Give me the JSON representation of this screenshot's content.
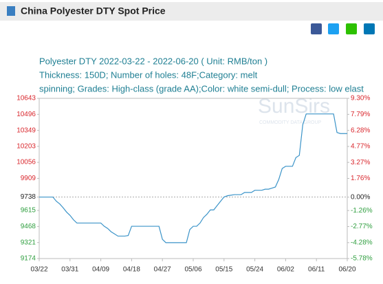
{
  "header": {
    "title": "China Polyester DTY Spot Price"
  },
  "watermark": {
    "brand": "SunSirs",
    "tagline": "COMMODITY DATA GROUP"
  },
  "chart_data": {
    "type": "line",
    "subtitle_lines": [
      "Polyester DTY 2022-03-22 - 2022-06-20    ( Unit: RMB/ton )",
      "Thickness: 150D; Number of holes: 48F;Category: melt",
      "spinning; Grades: High-class (grade AA);Color: white semi-dull; Process: low elast"
    ],
    "categories": [
      "03/22",
      null,
      null,
      null,
      null,
      null,
      null,
      null,
      null,
      "03/31",
      null,
      null,
      null,
      null,
      null,
      null,
      null,
      null,
      "04/09",
      null,
      null,
      null,
      null,
      null,
      null,
      null,
      null,
      "04/18",
      null,
      null,
      null,
      null,
      null,
      null,
      null,
      null,
      "04/27",
      null,
      null,
      null,
      null,
      null,
      null,
      null,
      null,
      "05/06",
      null,
      null,
      null,
      null,
      null,
      null,
      null,
      null,
      "05/15",
      null,
      null,
      null,
      null,
      null,
      null,
      null,
      null,
      "05/24",
      null,
      null,
      null,
      null,
      null,
      null,
      null,
      null,
      "06/02",
      null,
      null,
      null,
      null,
      null,
      null,
      null,
      null,
      "06/11",
      null,
      null,
      null,
      null,
      null,
      null,
      null,
      null,
      "06/20"
    ],
    "series": [
      {
        "color": "#3a93c8",
        "values": [
          9738,
          9738,
          9738,
          9738,
          9738,
          9700,
          9675,
          9640,
          9600,
          9570,
          9530,
          9500,
          9500,
          9500,
          9500,
          9500,
          9500,
          9500,
          9500,
          9470,
          9450,
          9420,
          9400,
          9380,
          9380,
          9380,
          9385,
          9470,
          9470,
          9470,
          9470,
          9470,
          9470,
          9470,
          9470,
          9470,
          9350,
          9320,
          9320,
          9320,
          9320,
          9320,
          9320,
          9320,
          9440,
          9470,
          9470,
          9500,
          9550,
          9580,
          9620,
          9620,
          9660,
          9700,
          9738,
          9750,
          9755,
          9760,
          9760,
          9760,
          9780,
          9780,
          9780,
          9800,
          9800,
          9800,
          9810,
          9810,
          9820,
          9830,
          9900,
          10000,
          10020,
          10020,
          10020,
          10100,
          10120,
          10400,
          10500,
          10500,
          10500,
          10500,
          10500,
          10500,
          10500,
          10500,
          10500,
          10330,
          10320,
          10320,
          10320
        ]
      }
    ],
    "ylim": [
      9174,
      10643
    ],
    "yticks": [
      10643,
      10496,
      10349,
      10203,
      10056,
      9909,
      9738,
      9615,
      9468,
      9321,
      9174
    ],
    "y2lim": [
      -5.78,
      9.3
    ],
    "y2ticks": [
      {
        "value": 9.3,
        "label": "9.30%"
      },
      {
        "value": 7.79,
        "label": "7.79%"
      },
      {
        "value": 6.28,
        "label": "6.28%"
      },
      {
        "value": 4.77,
        "label": "4.77%"
      },
      {
        "value": 3.27,
        "label": "3.27%"
      },
      {
        "value": 1.76,
        "label": "1.76%"
      },
      {
        "value": 0,
        "label": "0.00%"
      },
      {
        "value": -1.26,
        "label": "-1.26%"
      },
      {
        "value": -2.77,
        "label": "-2.77%"
      },
      {
        "value": -4.28,
        "label": "-4.28%"
      },
      {
        "value": -5.78,
        "label": "-5.78%"
      }
    ]
  }
}
